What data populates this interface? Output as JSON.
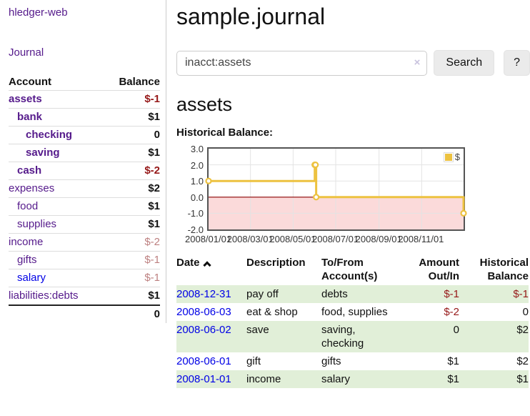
{
  "app": {
    "brand": "hledger-web",
    "nav_journal": "Journal"
  },
  "sidebar": {
    "header": {
      "account": "Account",
      "balance": "Balance"
    },
    "rows": [
      {
        "label": "assets",
        "indent": 0,
        "bold": true,
        "amount": "$-1",
        "amount_style": "neg-strong",
        "amount_bold": true
      },
      {
        "label": "bank",
        "indent": 1,
        "bold": true,
        "amount": "$1",
        "amount_style": "pos",
        "amount_bold": true
      },
      {
        "label": "checking",
        "indent": 2,
        "bold": true,
        "amount": "0",
        "amount_style": "pos",
        "amount_bold": true
      },
      {
        "label": "saving",
        "indent": 2,
        "bold": true,
        "amount": "$1",
        "amount_style": "pos",
        "amount_bold": true
      },
      {
        "label": "cash",
        "indent": 1,
        "bold": true,
        "amount": "$-2",
        "amount_style": "neg-strong",
        "amount_bold": true
      },
      {
        "label": "expenses",
        "indent": 0,
        "bold": false,
        "amount": "$2",
        "amount_style": "pos",
        "amount_bold": true
      },
      {
        "label": "food",
        "indent": 1,
        "bold": false,
        "amount": "$1",
        "amount_style": "pos",
        "amount_bold": true
      },
      {
        "label": "supplies",
        "indent": 1,
        "bold": false,
        "amount": "$1",
        "amount_style": "pos",
        "amount_bold": true
      },
      {
        "label": "income",
        "indent": 0,
        "bold": false,
        "amount": "$-2",
        "amount_style": "neg-soft",
        "amount_bold": false
      },
      {
        "label": "gifts",
        "indent": 1,
        "bold": false,
        "amount": "$-1",
        "amount_style": "neg-soft",
        "amount_bold": false
      },
      {
        "label": "salary",
        "indent": 1,
        "bold": false,
        "amount": "$-1",
        "amount_style": "neg-soft",
        "amount_bold": false,
        "link_color": "blue"
      },
      {
        "label": "liabilities:debts",
        "indent": 0,
        "bold": false,
        "amount": "$1",
        "amount_style": "pos",
        "amount_bold": true
      }
    ],
    "total": "0"
  },
  "main": {
    "title": "sample.journal",
    "search": {
      "value": "inacct:assets",
      "clear_icon": "×",
      "button": "Search",
      "help": "?"
    },
    "account_heading": "assets",
    "chart_label": "Historical Balance:"
  },
  "chart_data": {
    "type": "line",
    "step": true,
    "title": "Historical Balance",
    "series": [
      {
        "name": "$",
        "color": "#edc240",
        "points": [
          [
            "2008-01-01",
            1
          ],
          [
            "2008-06-01",
            2
          ],
          [
            "2008-06-02",
            2
          ],
          [
            "2008-06-03",
            0
          ],
          [
            "2008-12-31",
            -1
          ]
        ]
      }
    ],
    "xlim": [
      "2008-01-01",
      "2008-12-31"
    ],
    "ylim": [
      -2,
      3
    ],
    "x_ticks": [
      "2008/01/01",
      "2008/03/01",
      "2008/05/01",
      "2008/07/01",
      "2008/09/01",
      "2008/11/01"
    ],
    "y_ticks": [
      "3.0",
      "2.0",
      "1.0",
      "0.0",
      "-1.0",
      "-2.0"
    ],
    "grid": true,
    "legend": {
      "position": "top-right",
      "label": "$"
    },
    "colors": {
      "line": "#edc240",
      "marker_fill": "#ffffff",
      "negative_region": "#fbdada",
      "zero_line": "#8b0000",
      "grid": "#e3e3e3",
      "border": "#545454"
    }
  },
  "register": {
    "headers": [
      {
        "label": "Date",
        "align": "left",
        "sorted": true
      },
      {
        "label": "Description",
        "align": "left"
      },
      {
        "label": "To/From\nAccount(s)",
        "align": "left"
      },
      {
        "label": "Amount\nOut/In",
        "align": "right"
      },
      {
        "label": "Historical\nBalance",
        "align": "right"
      }
    ],
    "rows": [
      {
        "date": "2008-12-31",
        "description": "pay off",
        "to_from": "debts",
        "amount": "$-1",
        "amount_neg": true,
        "balance": "$-1",
        "balance_neg": true,
        "green": true
      },
      {
        "date": "2008-06-03",
        "description": "eat & shop",
        "to_from": "food, supplies",
        "amount": "$-2",
        "amount_neg": true,
        "balance": "0",
        "balance_neg": false,
        "green": false
      },
      {
        "date": "2008-06-02",
        "description": "save",
        "to_from": "saving,\nchecking",
        "amount": "0",
        "amount_neg": false,
        "balance": "$2",
        "balance_neg": false,
        "green": true
      },
      {
        "date": "2008-06-01",
        "description": "gift",
        "to_from": "gifts",
        "amount": "$1",
        "amount_neg": false,
        "balance": "$2",
        "balance_neg": false,
        "green": false
      },
      {
        "date": "2008-01-01",
        "description": "income",
        "to_from": "salary",
        "amount": "$1",
        "amount_neg": false,
        "balance": "$1",
        "balance_neg": false,
        "green": true
      }
    ]
  }
}
